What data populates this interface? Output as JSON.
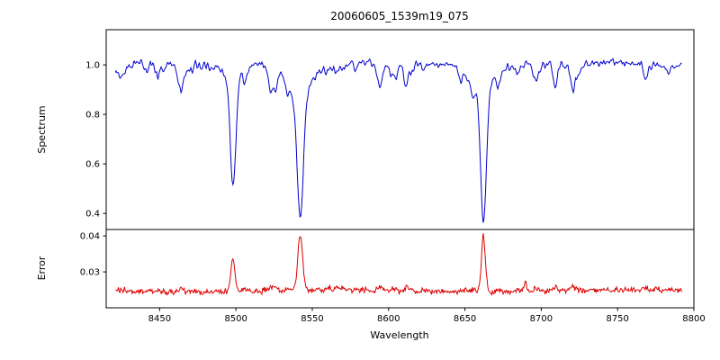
{
  "chart_data": [
    {
      "type": "line",
      "title": "20060605_1539m19_075",
      "xlabel": "Wavelength",
      "ylabel": "Spectrum",
      "legend": null,
      "grid": false,
      "color": "#0000cc",
      "xlim": [
        8415,
        8800
      ],
      "ylim": [
        0.335,
        1.142
      ],
      "xticks": [
        8450,
        8500,
        8550,
        8600,
        8650,
        8700,
        8750,
        8800
      ],
      "xtick_labels": [
        "8450",
        "8500",
        "8550",
        "8600",
        "8650",
        "8700",
        "8750",
        "8800"
      ],
      "yticks": [
        0.4,
        0.6,
        0.8,
        1.0
      ],
      "ytick_labels": [
        "0.4",
        "0.6",
        "0.8",
        "1.0"
      ],
      "x_start": 8421,
      "x_end": 8792,
      "x_step": 0.5,
      "continuum": 1.0,
      "noise_sigma": 0.013,
      "weak_line_count": 40,
      "absorption_lines": [
        {
          "center": 8498.0,
          "core_depth": 0.44,
          "core_width": 1.7,
          "wing_depth": 0.05,
          "wing_width": 5.0,
          "min_flux": 0.51
        },
        {
          "center": 8542.1,
          "core_depth": 0.52,
          "core_width": 2.1,
          "wing_depth": 0.1,
          "wing_width": 8.0,
          "min_flux": 0.38
        },
        {
          "center": 8662.1,
          "core_depth": 0.55,
          "core_width": 1.9,
          "wing_depth": 0.08,
          "wing_width": 7.0,
          "min_flux": 0.37
        }
      ]
    },
    {
      "type": "line",
      "title": "",
      "xlabel": "Wavelength",
      "ylabel": "Error",
      "grid": false,
      "color": "#dd0000",
      "xlim": [
        8415,
        8800
      ],
      "ylim": [
        0.02,
        0.0418
      ],
      "yticks": [
        0.03,
        0.04
      ],
      "ytick_labels": [
        "0.03",
        "0.04"
      ],
      "baseline": 0.0245,
      "noise_sigma": 0.00035,
      "peaks": [
        {
          "center": 8498.0,
          "height": 0.0092,
          "width": 1.3,
          "peak_value": 0.0337
        },
        {
          "center": 8542.1,
          "height": 0.0152,
          "width": 1.6,
          "peak_value": 0.0397
        },
        {
          "center": 8662.1,
          "height": 0.016,
          "width": 1.3,
          "peak_value": 0.0405
        },
        {
          "center": 8689.5,
          "height": 0.0028,
          "width": 1.0,
          "peak_value": 0.0273
        }
      ]
    }
  ]
}
